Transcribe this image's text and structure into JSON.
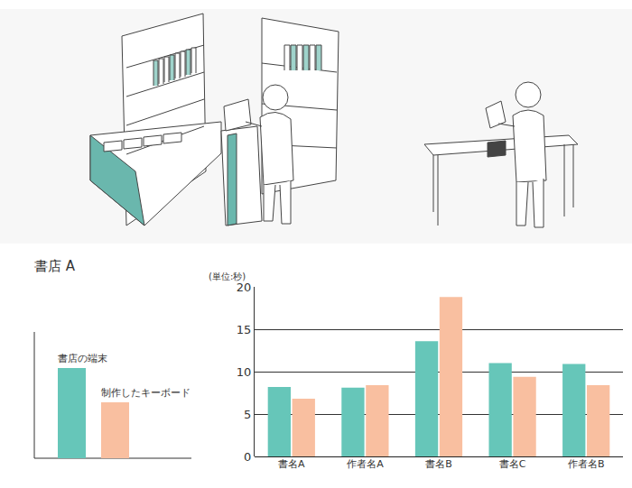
{
  "chart_data": {
    "type": "bar",
    "title": "書店 A",
    "y_label": "(単位:秒)",
    "categories": [
      "書名A",
      "作者名A",
      "書名B",
      "書名C",
      "作者名B"
    ],
    "series": [
      {
        "name": "書店の端末",
        "color": "#66c6b9",
        "values": [
          8.2,
          8.1,
          13.6,
          11.0,
          10.9
        ]
      },
      {
        "name": "制作したキーボード",
        "color": "#f9bfa0",
        "values": [
          6.8,
          8.4,
          18.8,
          9.4,
          8.4
        ]
      }
    ],
    "ylim": [
      0,
      20
    ],
    "yticks": [
      0,
      5,
      10,
      15,
      20
    ],
    "grid": true
  }
}
